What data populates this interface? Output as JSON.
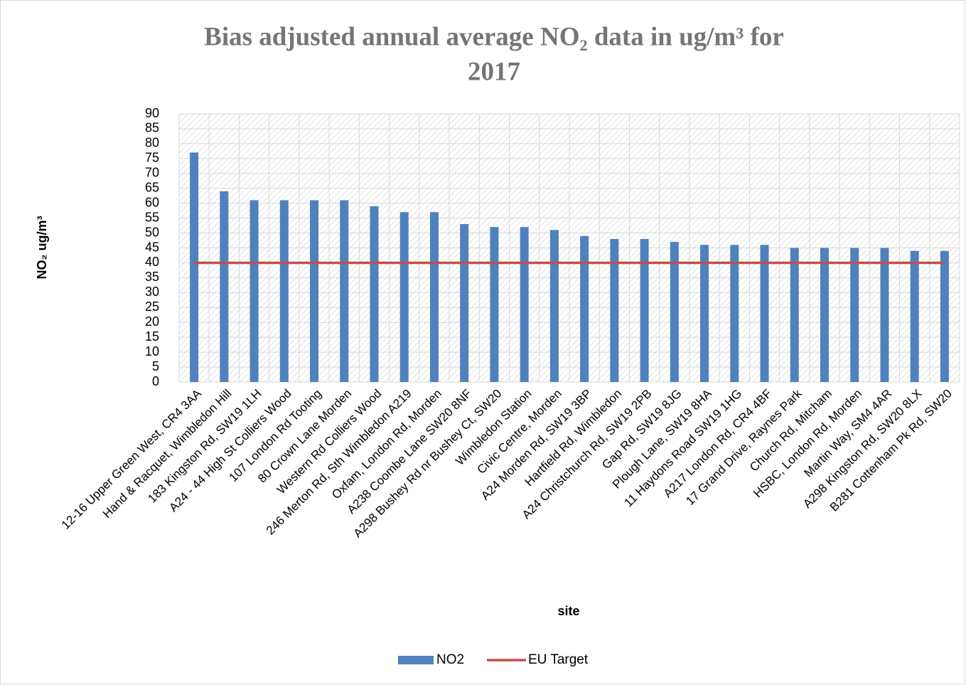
{
  "chart_data": {
    "type": "bar",
    "title_lines": [
      "Bias adjusted annual average NO₂ data in ug/m³ for",
      "2017"
    ],
    "x_label": "site",
    "y_label": "NO₂ ug/m³",
    "categories": [
      "12-16 Upper Green West, CR4 3AA",
      "Hand & Racquet, Wimbledon Hill",
      "183 Kingston Rd, SW19 1LH",
      "A24 - 44 High St Colliers Wood",
      "107 London Rd Tooting",
      "80 Crown Lane Morden",
      "Western Rd Colliers Wood",
      "246 Merton Rd, Sth Wimbledon A219",
      "Oxfam, London Rd, Morden",
      "A238 Coombe Lane SW20 8NF",
      "A298 Bushey Rd nr Bushey Ct, SW20",
      "Wimbledon Station",
      "Civic Centre, Morden",
      "A24 Morden Rd, SW19 3BP",
      "Hartfield Rd, Wimbledon",
      "A24 Christchurch Rd, SW19 2PB",
      "Gap Rd, SW19 8JG",
      "Plough Lane, SW19 8HA",
      "11 Haydons Road SW19 1HG",
      "A217 London Rd, CR4 4BF",
      "17 Grand Drive, Raynes Park",
      "Church Rd, Mitcham",
      "HSBC, London Rd, Morden",
      "Martin Way, SM4 4AR",
      "A298 Kingston Rd, SW20 8LX",
      "B281 Cottenham Pk Rd, SW20"
    ],
    "series": [
      {
        "name": "NO2",
        "type": "bar",
        "color": "#4f81bd",
        "values": [
          77,
          64,
          61,
          61,
          61,
          61,
          59,
          57,
          57,
          53,
          52,
          52,
          51,
          49,
          48,
          48,
          47,
          46,
          46,
          46,
          45,
          45,
          45,
          45,
          44,
          44
        ]
      },
      {
        "name": "EU Target",
        "type": "line",
        "color": "#c0504d",
        "values": [
          40,
          40,
          40,
          40,
          40,
          40,
          40,
          40,
          40,
          40,
          40,
          40,
          40,
          40,
          40,
          40,
          40,
          40,
          40,
          40,
          40,
          40,
          40,
          40,
          40,
          40
        ]
      }
    ],
    "ylim": [
      0,
      90
    ],
    "yticks": [
      0,
      5,
      10,
      15,
      20,
      25,
      30,
      35,
      40,
      45,
      50,
      55,
      60,
      65,
      70,
      75,
      80,
      85,
      90
    ],
    "grid": true,
    "legend": "bottom"
  }
}
